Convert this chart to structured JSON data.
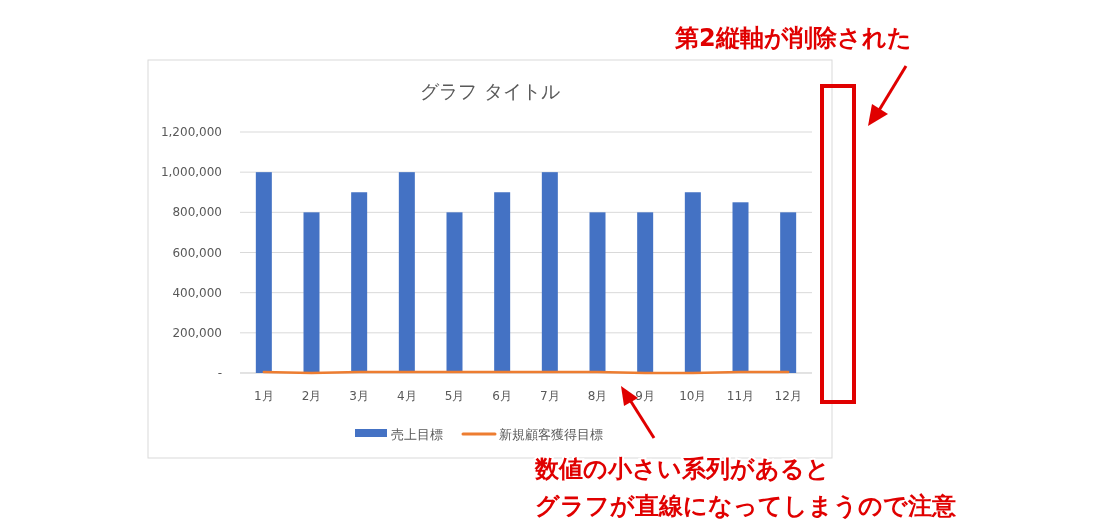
{
  "chart_data": {
    "type": "bar",
    "title": "グラフ タイトル",
    "categories": [
      "1月",
      "2月",
      "3月",
      "4月",
      "5月",
      "6月",
      "7月",
      "8月",
      "9月",
      "10月",
      "11月",
      "12月"
    ],
    "series": [
      {
        "name": "売上目標",
        "color": "#4472c4",
        "values": [
          1000000,
          800000,
          900000,
          1000000,
          800000,
          900000,
          1000000,
          800000,
          800000,
          900000,
          850000,
          800000
        ]
      },
      {
        "name": "新規顧客獲得目標",
        "type": "line",
        "color": "#ed7d31",
        "values": [
          5000,
          0,
          5000,
          5000,
          5000,
          5000,
          5000,
          5000,
          0,
          0,
          5000,
          5000
        ]
      }
    ],
    "ylim": [
      0,
      1200000
    ],
    "yticks": [
      {
        "value": 0,
        "label": "-"
      },
      {
        "value": 200000,
        "label": "200,000"
      },
      {
        "value": 400000,
        "label": "400,000"
      },
      {
        "value": 600000,
        "label": "600,000"
      },
      {
        "value": 800000,
        "label": "800,000"
      },
      {
        "value": 1000000,
        "label": "1,000,000"
      },
      {
        "value": 1200000,
        "label": "1,200,000"
      }
    ],
    "grid": "y",
    "legend": "bottom",
    "marker": "none",
    "line_style": "solid",
    "annotations": [
      "第2縦軸が削除された",
      "数値の小さい系列があると",
      "グラフが直線になってしまうので注意"
    ]
  }
}
